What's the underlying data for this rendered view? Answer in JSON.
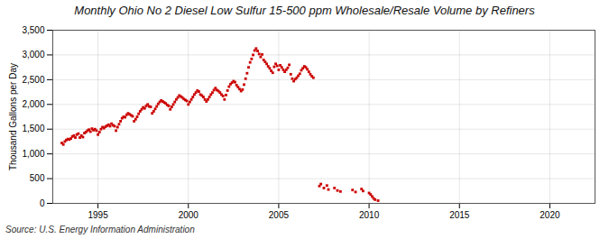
{
  "chart_data": {
    "type": "scatter",
    "title": "Monthly Ohio No 2 Diesel Low Sulfur 15-500 ppm Wholesale/Resale Volume by Refiners",
    "ylabel": "Thousand Gallons per Day",
    "source": "Source: U.S. Energy Information Administration",
    "color": "#cc0000",
    "marker": "square",
    "grid": true,
    "xlim": [
      1992.5,
      2022.5
    ],
    "xticks": [
      1995,
      2000,
      2005,
      2010,
      2015,
      2020
    ],
    "ylim": [
      0,
      3500
    ],
    "yticks": [
      0,
      500,
      {
        "value": 1000,
        "label": "1,000"
      },
      {
        "value": 1500,
        "label": "1,500"
      },
      {
        "value": 2000,
        "label": "2,000"
      },
      {
        "value": 2500,
        "label": "2,500"
      },
      {
        "value": 3000,
        "label": "3,000"
      },
      {
        "value": 3500,
        "label": "3,500"
      }
    ],
    "x": [
      1993.0,
      1993.083,
      1993.167,
      1993.25,
      1993.333,
      1993.417,
      1993.5,
      1993.583,
      1993.667,
      1993.75,
      1993.833,
      1993.917,
      1994.0,
      1994.083,
      1994.167,
      1994.25,
      1994.333,
      1994.417,
      1994.5,
      1994.583,
      1994.667,
      1994.75,
      1994.833,
      1994.917,
      1995.0,
      1995.083,
      1995.167,
      1995.25,
      1995.333,
      1995.417,
      1995.5,
      1995.583,
      1995.667,
      1995.75,
      1995.833,
      1995.917,
      1996.0,
      1996.083,
      1996.167,
      1996.25,
      1996.333,
      1996.417,
      1996.5,
      1996.583,
      1996.667,
      1996.75,
      1996.833,
      1996.917,
      1997.0,
      1997.083,
      1997.167,
      1997.25,
      1997.333,
      1997.417,
      1997.5,
      1997.583,
      1997.667,
      1997.75,
      1997.833,
      1997.917,
      1998.0,
      1998.083,
      1998.167,
      1998.25,
      1998.333,
      1998.417,
      1998.5,
      1998.583,
      1998.667,
      1998.75,
      1998.833,
      1998.917,
      1999.0,
      1999.083,
      1999.167,
      1999.25,
      1999.333,
      1999.417,
      1999.5,
      1999.583,
      1999.667,
      1999.75,
      1999.833,
      1999.917,
      2000.0,
      2000.083,
      2000.167,
      2000.25,
      2000.333,
      2000.417,
      2000.5,
      2000.583,
      2000.667,
      2000.75,
      2000.833,
      2000.917,
      2001.0,
      2001.083,
      2001.167,
      2001.25,
      2001.333,
      2001.417,
      2001.5,
      2001.583,
      2001.667,
      2001.75,
      2001.833,
      2001.917,
      2002.0,
      2002.083,
      2002.167,
      2002.25,
      2002.333,
      2002.417,
      2002.5,
      2002.583,
      2002.667,
      2002.75,
      2002.833,
      2002.917,
      2003.0,
      2003.083,
      2003.167,
      2003.25,
      2003.333,
      2003.417,
      2003.5,
      2003.583,
      2003.667,
      2003.75,
      2003.833,
      2003.917,
      2004.0,
      2004.083,
      2004.167,
      2004.25,
      2004.333,
      2004.417,
      2004.5,
      2004.583,
      2004.667,
      2004.75,
      2004.833,
      2004.917,
      2005.0,
      2005.083,
      2005.167,
      2005.25,
      2005.333,
      2005.417,
      2005.5,
      2005.583,
      2005.667,
      2005.75,
      2005.833,
      2005.917,
      2006.0,
      2006.083,
      2006.167,
      2006.25,
      2006.333,
      2006.417,
      2006.5,
      2006.583,
      2006.667,
      2006.75,
      2006.833,
      2006.917,
      2007.25,
      2007.333,
      2007.5,
      2007.667,
      2007.75,
      2008.083,
      2008.25,
      2008.417,
      2009.083,
      2009.25,
      2009.583,
      2009.667,
      2010.0,
      2010.083,
      2010.167,
      2010.25,
      2010.333,
      2010.5
    ],
    "values": [
      1220,
      1190,
      1250,
      1280,
      1300,
      1290,
      1310,
      1350,
      1370,
      1330,
      1390,
      1410,
      1330,
      1370,
      1340,
      1420,
      1440,
      1470,
      1490,
      1450,
      1510,
      1480,
      1500,
      1470,
      1390,
      1440,
      1500,
      1540,
      1520,
      1550,
      1570,
      1590,
      1560,
      1610,
      1580,
      1560,
      1470,
      1540,
      1600,
      1660,
      1720,
      1750,
      1740,
      1790,
      1820,
      1800,
      1780,
      1760,
      1660,
      1700,
      1750,
      1810,
      1860,
      1900,
      1940,
      1920,
      1970,
      2000,
      1960,
      1950,
      1820,
      1860,
      1910,
      1960,
      2010,
      2050,
      2080,
      2060,
      2040,
      2020,
      1990,
      1970,
      1900,
      1950,
      2000,
      2050,
      2100,
      2140,
      2180,
      2160,
      2140,
      2110,
      2090,
      2070,
      2000,
      2050,
      2100,
      2150,
      2200,
      2240,
      2280,
      2260,
      2200,
      2180,
      2150,
      2100,
      2060,
      2100,
      2150,
      2200,
      2240,
      2290,
      2330,
      2290,
      2270,
      2240,
      2200,
      2170,
      2100,
      2190,
      2280,
      2360,
      2410,
      2440,
      2470,
      2450,
      2390,
      2350,
      2310,
      2270,
      2300,
      2400,
      2520,
      2630,
      2750,
      2850,
      2920,
      3000,
      3090,
      3130,
      3080,
      3020,
      2960,
      3010,
      2900,
      2860,
      2820,
      2770,
      2730,
      2680,
      2640,
      2760,
      2820,
      2780,
      2700,
      2790,
      2750,
      2700,
      2660,
      2700,
      2740,
      2800,
      2610,
      2520,
      2470,
      2510,
      2540,
      2580,
      2620,
      2690,
      2730,
      2770,
      2750,
      2710,
      2660,
      2610,
      2570,
      2540,
      350,
      390,
      310,
      360,
      280,
      310,
      260,
      240,
      270,
      230,
      290,
      250,
      210,
      180,
      140,
      100,
      75,
      55
    ]
  }
}
